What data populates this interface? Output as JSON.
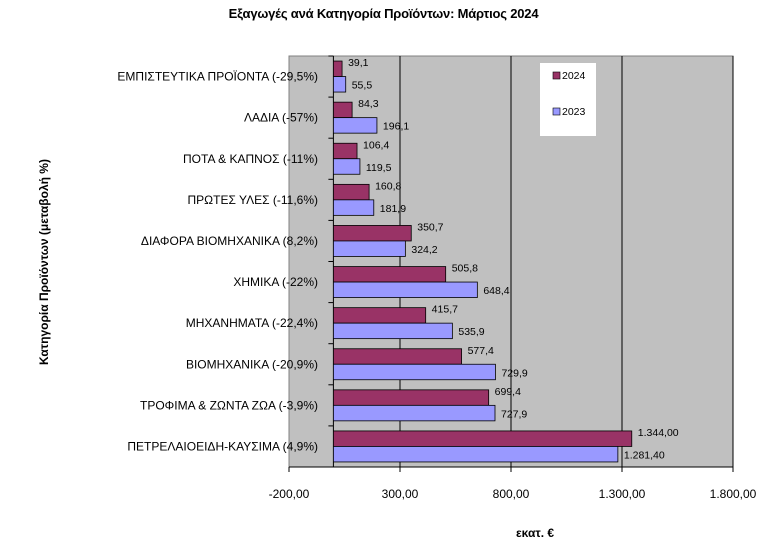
{
  "chart_data": {
    "type": "bar",
    "orientation": "horizontal",
    "title": "Εξαγωγές ανά Κατηγορία Προϊόντων: Μάρτιος 2024",
    "xlabel": "εκατ. €",
    "ylabel": "Κατηγορία Προϊόντων (μεταβολή %)",
    "xlim": [
      -200,
      1800
    ],
    "xticks": [
      -200,
      300,
      800,
      1300,
      1800
    ],
    "xtick_labels": [
      "-200,00",
      "300,00",
      "800,00",
      "1.300,00",
      "1.800,00"
    ],
    "grid": "vertical",
    "legend_position": "top-right",
    "categories": [
      "ΕΜΠΙΣΤΕΥΤΙΚΑ ΠΡΟΪΟΝΤΑ (-29,5%)",
      "ΛΑΔΙΑ (-57%)",
      "ΠΟΤΑ & ΚΑΠΝΟΣ (-11%)",
      "ΠΡΩΤΕΣ ΥΛΕΣ (-11,6%)",
      "ΔΙΑΦΟΡΑ ΒΙΟΜΗΧΑΝΙΚΑ (8,2%)",
      "ΧΗΜΙΚΑ (-22%)",
      "ΜΗΧΑΝΗΜΑΤΑ (-22,4%)",
      "ΒΙΟΜΗΧΑΝΙΚΑ (-20,9%)",
      "ΤΡΟΦΙΜΑ & ΖΩΝΤΑ ΖΩΑ (-3,9%)",
      "ΠΕΤΡΕΛΑΙΟΕΙΔΗ-ΚΑΥΣΙΜΑ (4,9%)"
    ],
    "series": [
      {
        "name": "2024",
        "color": "#993366",
        "values": [
          39.1,
          84.3,
          106.4,
          160.8,
          350.7,
          505.8,
          415.7,
          577.4,
          699.4,
          1344.0
        ],
        "labels": [
          "39,1",
          "84,3",
          "106,4",
          "160,8",
          "350,7",
          "505,8",
          "415,7",
          "577,4",
          "699,4",
          "1.344,00"
        ]
      },
      {
        "name": "2023",
        "color": "#9999ff",
        "values": [
          55.5,
          196.1,
          119.5,
          181.9,
          324.2,
          648.4,
          535.9,
          729.9,
          727.9,
          1281.4
        ],
        "labels": [
          "55,5",
          "196,1",
          "119,5",
          "181,9",
          "324,2",
          "648,4",
          "535,9",
          "729,9",
          "727,9",
          "1.281,40"
        ]
      }
    ],
    "colors": {
      "plot_background": "#c0c0c0",
      "gridline": "#000000"
    }
  }
}
